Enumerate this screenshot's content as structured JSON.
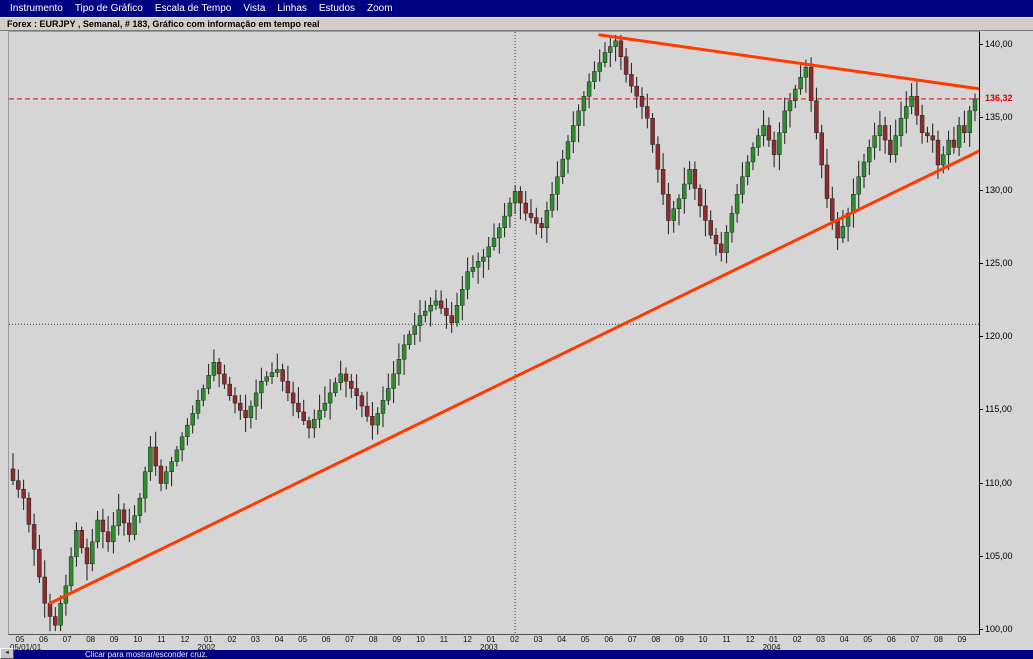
{
  "menu": {
    "items": [
      "Instrumento",
      "Tipo de Gráfico",
      "Escala de Tempo",
      "Vista",
      "Linhas",
      "Estudos",
      "Zoom"
    ]
  },
  "info_bar": {
    "text": "Forex : EURJPY , Semanal, # 183, Gráfico com informação em tempo real"
  },
  "status_bar": {
    "text": "Clicar para mostrar/esconder cruz.",
    "grip_glyph": "◄"
  },
  "chart_data": {
    "type": "candlestick",
    "title": "EURJPY Semanal",
    "instrument": "EURJPY",
    "timeframe": "Semanal",
    "bars": 183,
    "ylim": [
      99.7,
      140.9
    ],
    "y_axis": {
      "ticks": [
        "140,00",
        "135,00",
        "130,00",
        "125,00",
        "120,00",
        "115,00",
        "110,00",
        "105,00",
        "100,00"
      ],
      "values": [
        140,
        135,
        130,
        125,
        120,
        115,
        110,
        105,
        100
      ]
    },
    "x_axis": {
      "month_labels": [
        "05",
        "06",
        "07",
        "08",
        "09",
        "10",
        "11",
        "12",
        "01",
        "02",
        "03",
        "04",
        "05",
        "06",
        "07",
        "08",
        "09",
        "10",
        "11",
        "12",
        "01",
        "02",
        "03",
        "04",
        "05",
        "06",
        "07",
        "08",
        "09",
        "10",
        "11",
        "12",
        "01",
        "02",
        "03",
        "04",
        "05",
        "06",
        "07",
        "08",
        "09"
      ],
      "year_labels": [
        {
          "label": "05/01/01",
          "pos": 0
        },
        {
          "label": "2002",
          "pos": 8
        },
        {
          "label": "2003",
          "pos": 20
        },
        {
          "label": "2004",
          "pos": 32
        }
      ]
    },
    "last_price": 136.32,
    "last_price_label": "136,32",
    "first_open": 111.0,
    "closes": [
      110.2,
      109.6,
      109.0,
      107.2,
      105.5,
      103.6,
      101.8,
      100.9,
      100.3,
      101.8,
      103.0,
      105.0,
      106.8,
      105.6,
      104.5,
      106.0,
      107.5,
      106.7,
      106.0,
      107.1,
      108.2,
      107.3,
      106.5,
      107.8,
      109.0,
      110.8,
      112.5,
      111.2,
      110.0,
      110.8,
      111.5,
      112.3,
      113.2,
      114.0,
      114.8,
      115.7,
      116.5,
      117.4,
      118.3,
      117.5,
      116.8,
      116.0,
      115.5,
      115.0,
      114.5,
      115.3,
      116.2,
      117.0,
      117.3,
      117.6,
      117.8,
      117.0,
      116.2,
      115.5,
      114.9,
      114.3,
      113.8,
      114.4,
      115.0,
      115.5,
      116.2,
      116.9,
      117.5,
      117.0,
      116.5,
      116.0,
      115.3,
      114.6,
      114.0,
      114.8,
      115.7,
      116.5,
      117.5,
      118.5,
      119.5,
      120.2,
      120.8,
      121.5,
      121.8,
      122.2,
      122.5,
      122.0,
      121.5,
      121.0,
      122.2,
      123.3,
      124.5,
      124.8,
      125.2,
      125.5,
      126.2,
      126.8,
      127.5,
      128.3,
      129.2,
      130.0,
      129.2,
      128.5,
      128.2,
      127.8,
      127.5,
      128.7,
      129.8,
      131.0,
      132.2,
      133.4,
      134.5,
      135.5,
      136.5,
      137.5,
      138.2,
      138.8,
      139.5,
      139.9,
      140.3,
      139.2,
      138.0,
      137.2,
      136.5,
      135.8,
      135.0,
      133.2,
      131.5,
      129.8,
      128.0,
      128.8,
      129.5,
      130.5,
      131.5,
      130.2,
      129.0,
      128.0,
      127.0,
      126.4,
      125.8,
      127.2,
      128.5,
      129.8,
      131.0,
      132.0,
      133.0,
      133.8,
      134.5,
      133.5,
      132.5,
      134.0,
      135.5,
      136.2,
      137.0,
      137.8,
      138.5,
      136.2,
      134.0,
      131.8,
      129.5,
      128.0,
      126.8,
      127.6,
      128.5,
      129.8,
      131.0,
      132.0,
      133.0,
      133.8,
      134.5,
      133.5,
      132.5,
      133.8,
      135.0,
      135.8,
      136.5,
      135.2,
      134.0,
      133.8,
      133.5,
      131.8,
      132.5,
      133.5,
      133.0,
      134.5,
      134.0,
      135.5,
      136.32
    ],
    "wick": {
      "base": 0.25,
      "amp": 0.9
    },
    "trendlines": [
      {
        "from_bar": 111,
        "from_price": 140.7,
        "to_bar": 183,
        "to_price": 137.0
      },
      {
        "from_bar": 7,
        "from_price": 101.8,
        "to_bar": 183,
        "to_price": 132.8
      }
    ],
    "crosshair": {
      "bar": 95,
      "price": 120.9
    },
    "legend": "none",
    "grid": "off",
    "colors": {
      "up": "#2e8b2e",
      "down": "#8b2d2d",
      "wick": "#1c1c1c",
      "trendline": "#ff3a00",
      "last_price_line": "#f00000",
      "crosshair": "#3a3a3a",
      "background": "#d5d5d5",
      "chrome": "#000082"
    }
  }
}
